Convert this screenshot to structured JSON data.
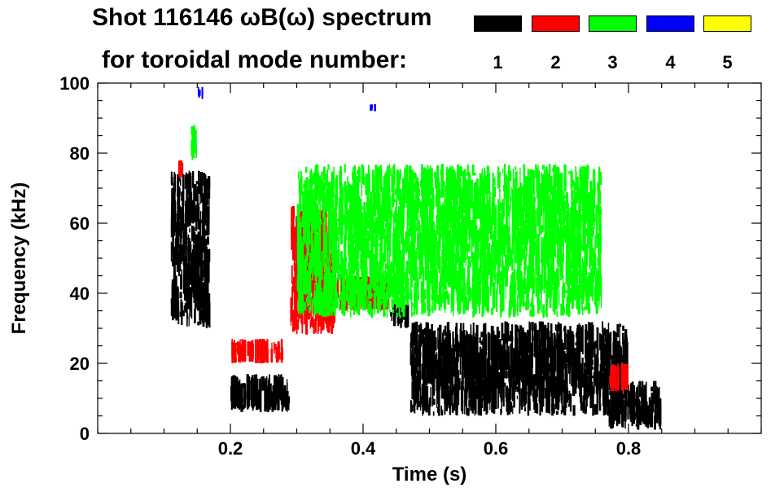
{
  "title_line1": "Shot 116146 ωB(ω) spectrum",
  "title_line2": "for toroidal mode number:",
  "legend": [
    {
      "label": "1",
      "color": "#000000"
    },
    {
      "label": "2",
      "color": "#ff0000"
    },
    {
      "label": "3",
      "color": "#00ff00"
    },
    {
      "label": "4",
      "color": "#0000ff"
    },
    {
      "label": "5",
      "color": "#ffff00"
    }
  ],
  "chart_data": {
    "type": "spectrogram",
    "title": "Shot 116146 ωB(ω) spectrum",
    "xlabel": "Time (s)",
    "ylabel": "Frequency (kHz)",
    "xlim": [
      0.0,
      1.0
    ],
    "ylim": [
      0,
      100
    ],
    "xticks": [
      0.2,
      0.4,
      0.6,
      0.8
    ],
    "xtick_labels": [
      "0.2",
      "0.4",
      "0.6",
      "0.8"
    ],
    "yticks": [
      0,
      20,
      40,
      60,
      80,
      100
    ],
    "ytick_labels": [
      "0",
      "20",
      "40",
      "60",
      "80",
      "100"
    ],
    "series": [
      {
        "name": "n=1",
        "color": "#000000",
        "regions": [
          {
            "t": [
              0.11,
              0.17
            ],
            "f": [
              30,
              75
            ]
          },
          {
            "t": [
              0.2,
              0.29
            ],
            "f": [
              6,
              17
            ]
          },
          {
            "t": [
              0.44,
              0.47
            ],
            "f": [
              30,
              37
            ]
          },
          {
            "t": [
              0.47,
              0.8
            ],
            "f": [
              5,
              32
            ]
          },
          {
            "t": [
              0.77,
              0.85
            ],
            "f": [
              1,
              15
            ]
          }
        ]
      },
      {
        "name": "n=2",
        "color": "#ff0000",
        "regions": [
          {
            "t": [
              0.12,
              0.13
            ],
            "f": [
              73,
              78
            ]
          },
          {
            "t": [
              0.2,
              0.28
            ],
            "f": [
              20,
              27
            ]
          },
          {
            "t": [
              0.29,
              0.36
            ],
            "f": [
              28,
              65
            ]
          },
          {
            "t": [
              0.36,
              0.44
            ],
            "f": [
              35,
              45
            ]
          },
          {
            "t": [
              0.77,
              0.8
            ],
            "f": [
              12,
              20
            ]
          }
        ]
      },
      {
        "name": "n=3",
        "color": "#00ff00",
        "regions": [
          {
            "t": [
              0.14,
              0.15
            ],
            "f": [
              78,
              88
            ]
          },
          {
            "t": [
              0.3,
              0.76
            ],
            "f": [
              33,
              77
            ]
          }
        ]
      },
      {
        "name": "n=4",
        "color": "#0000ff",
        "regions": [
          {
            "t": [
              0.15,
              0.16
            ],
            "f": [
              95,
              99
            ]
          },
          {
            "t": [
              0.41,
              0.42
            ],
            "f": [
              92,
              94
            ]
          }
        ]
      },
      {
        "name": "n=5",
        "color": "#ffff00",
        "regions": []
      }
    ]
  }
}
